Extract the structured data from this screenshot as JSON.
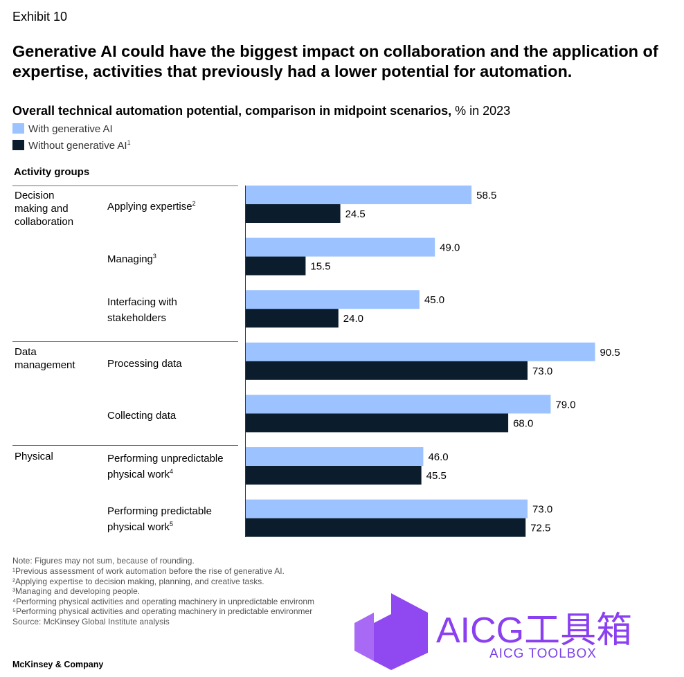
{
  "exhibit": "Exhibit 10",
  "headline": "Generative AI could have the biggest impact on collaboration and the application of expertise, activities that previously had a lower potential for automation.",
  "subtitle_bold": "Overall technical automation potential, comparison in midpoint scenarios,",
  "subtitle_unit": " % in 2023",
  "groups_header": "Activity groups",
  "colors": {
    "with": "#9cc3ff",
    "without": "#0b1c2d"
  },
  "legend": {
    "with": "With generative AI",
    "without": "Without generative AI",
    "without_sup": "1"
  },
  "groups": [
    {
      "label": "Decision\nmaking and\ncollaboration"
    },
    {
      "label": "Data\nmanagement"
    },
    {
      "label": "Physical"
    }
  ],
  "activities": [
    {
      "label": "Applying expertise",
      "sup": "2"
    },
    {
      "label": "Managing",
      "sup": "3"
    },
    {
      "label": "Interfacing with\nstakeholders",
      "sup": ""
    },
    {
      "label": "Processing data",
      "sup": ""
    },
    {
      "label": "Collecting data",
      "sup": ""
    },
    {
      "label": "Performing unpredictable\nphysical work",
      "sup": "4"
    },
    {
      "label": "Performing predictable\nphysical work",
      "sup": "5"
    }
  ],
  "chart_data": {
    "type": "bar",
    "orientation": "horizontal",
    "categories": [
      "Applying expertise",
      "Managing",
      "Interfacing with stakeholders",
      "Processing data",
      "Collecting data",
      "Performing unpredictable physical work",
      "Performing predictable physical work"
    ],
    "series": [
      {
        "name": "With generative AI",
        "values": [
          58.5,
          49.0,
          45.0,
          90.5,
          79.0,
          46.0,
          73.0
        ],
        "labels": [
          "58.5",
          "49.0",
          "45.0",
          "90.5",
          "79.0",
          "46.0",
          "73.0"
        ]
      },
      {
        "name": "Without generative AI",
        "values": [
          24.5,
          15.5,
          24.0,
          73.0,
          68.0,
          45.5,
          72.5
        ],
        "labels": [
          "24.5",
          "15.5",
          "24.0",
          "73.0",
          "68.0",
          "45.5",
          "72.5"
        ]
      }
    ],
    "title": "Overall technical automation potential, comparison in midpoint scenarios, % in 2023",
    "xlim": [
      0,
      100
    ]
  },
  "footnotes": [
    " Note: Figures may not sum, because of rounding.",
    "¹Previous assessment of work automation before the rise of generative AI.",
    "²Applying expertise to decision making, planning, and creative tasks.",
    "³Managing and developing people.",
    "⁴Performing physical activities and operating machinery in unpredictable environm",
    "⁵Performing physical activities and operating machinery in predictable environmer",
    " Source: McKinsey Global Institute analysis"
  ],
  "brand": "McKinsey & Company",
  "watermark": {
    "title": "AICG工具箱",
    "subtitle": "AICG TOOLBOX"
  }
}
